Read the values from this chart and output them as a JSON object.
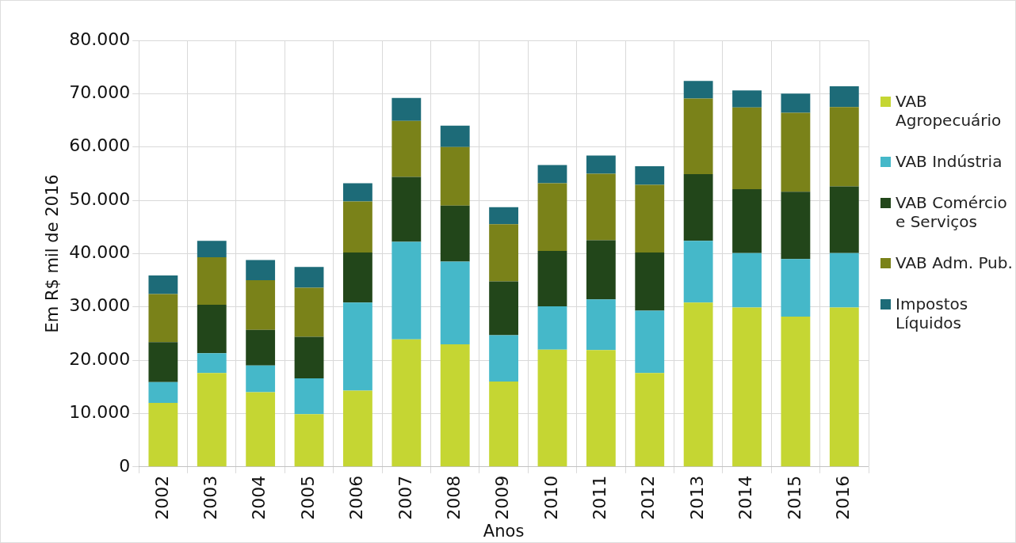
{
  "chart_data": {
    "type": "bar",
    "stacked": true,
    "xlabel": "Anos",
    "ylabel": "Em R$ mil de 2016",
    "categories": [
      "2002",
      "2003",
      "2004",
      "2005",
      "2006",
      "2007",
      "2008",
      "2009",
      "2010",
      "2011",
      "2012",
      "2013",
      "2014",
      "2015",
      "2016"
    ],
    "series": [
      {
        "name": "VAB Agropecuário",
        "color": "#c5d633",
        "values": [
          12000,
          17600,
          14000,
          9900,
          14300,
          23900,
          23000,
          16000,
          22000,
          21900,
          17600,
          30800,
          29900,
          28200,
          29900
        ]
      },
      {
        "name": "VAB Indústria",
        "color": "#45b8c9",
        "values": [
          3900,
          3700,
          5000,
          6700,
          16500,
          18300,
          15500,
          8700,
          8100,
          9500,
          11700,
          11600,
          10200,
          10800,
          10200
        ]
      },
      {
        "name": "VAB Comércio e Serviços",
        "color": "#22461a",
        "values": [
          7500,
          9100,
          6700,
          7800,
          9400,
          12200,
          10500,
          10100,
          10400,
          11100,
          10900,
          12500,
          12000,
          12600,
          12500
        ]
      },
      {
        "name": "VAB Adm. Pub.",
        "color": "#7a8219",
        "values": [
          9000,
          8900,
          9300,
          9200,
          9600,
          10500,
          11000,
          10700,
          12700,
          12500,
          12700,
          14200,
          15300,
          14800,
          14900
        ]
      },
      {
        "name": "Impostos Líquidos",
        "color": "#1d6b78",
        "values": [
          3500,
          3100,
          3800,
          3900,
          3400,
          4300,
          4000,
          3200,
          3400,
          3400,
          3500,
          3300,
          3200,
          3600,
          3900
        ]
      }
    ],
    "ylim": [
      0,
      80000
    ],
    "yticks": [
      {
        "value": 0,
        "label": "0"
      },
      {
        "value": 10000,
        "label": "10.000"
      },
      {
        "value": 20000,
        "label": "20.000"
      },
      {
        "value": 30000,
        "label": "30.000"
      },
      {
        "value": 40000,
        "label": "40.000"
      },
      {
        "value": 50000,
        "label": "50.000"
      },
      {
        "value": 60000,
        "label": "60.000"
      },
      {
        "value": 70000,
        "label": "70.000"
      },
      {
        "value": 80000,
        "label": "80.000"
      }
    ],
    "grid": true,
    "legend": "right"
  }
}
